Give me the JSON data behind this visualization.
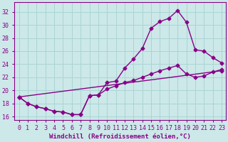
{
  "background_color": "#cce8e8",
  "grid_color": "#aad4d4",
  "line_color": "#880088",
  "xlabel": "Windchill (Refroidissement éolien,°C)",
  "xlim": [
    -0.5,
    23.5
  ],
  "ylim": [
    15.5,
    33.5
  ],
  "yticks": [
    16,
    18,
    20,
    22,
    24,
    26,
    28,
    30,
    32
  ],
  "xticks": [
    0,
    1,
    2,
    3,
    4,
    5,
    6,
    7,
    8,
    9,
    10,
    11,
    12,
    13,
    14,
    15,
    16,
    17,
    18,
    19,
    20,
    21,
    22,
    23
  ],
  "curve1_x": [
    0,
    1,
    2,
    3,
    4,
    5,
    6,
    7,
    8,
    9,
    10,
    11,
    12,
    13,
    14,
    15,
    16,
    17,
    18,
    19,
    20,
    21,
    22,
    23
  ],
  "curve1_y": [
    19.0,
    18.0,
    17.5,
    17.2,
    16.8,
    16.7,
    16.3,
    16.3,
    19.2,
    19.3,
    21.2,
    21.4,
    23.4,
    24.8,
    26.4,
    29.5,
    30.5,
    31.0,
    32.2,
    30.4,
    26.2,
    26.0,
    25.0,
    24.2
  ],
  "curve2_x": [
    0,
    1,
    2,
    3,
    4,
    5,
    6,
    7,
    8,
    9,
    10,
    11,
    12,
    13,
    14,
    15,
    16,
    17,
    18,
    19,
    20,
    21,
    22,
    23
  ],
  "curve2_y": [
    19.0,
    18.0,
    17.5,
    17.2,
    16.8,
    16.7,
    16.3,
    16.3,
    19.2,
    19.3,
    20.2,
    20.7,
    21.2,
    21.5,
    22.0,
    22.5,
    23.0,
    23.4,
    23.8,
    22.5,
    22.0,
    22.2,
    22.8,
    23.2
  ],
  "curve3_x": [
    0,
    23
  ],
  "curve3_y": [
    19.0,
    23.0
  ],
  "marker": "D",
  "markersize": 2.5,
  "linewidth": 1.0,
  "xlabel_fontsize": 6.5,
  "tick_fontsize": 6.0,
  "tick_color": "#880088",
  "label_color": "#880088"
}
